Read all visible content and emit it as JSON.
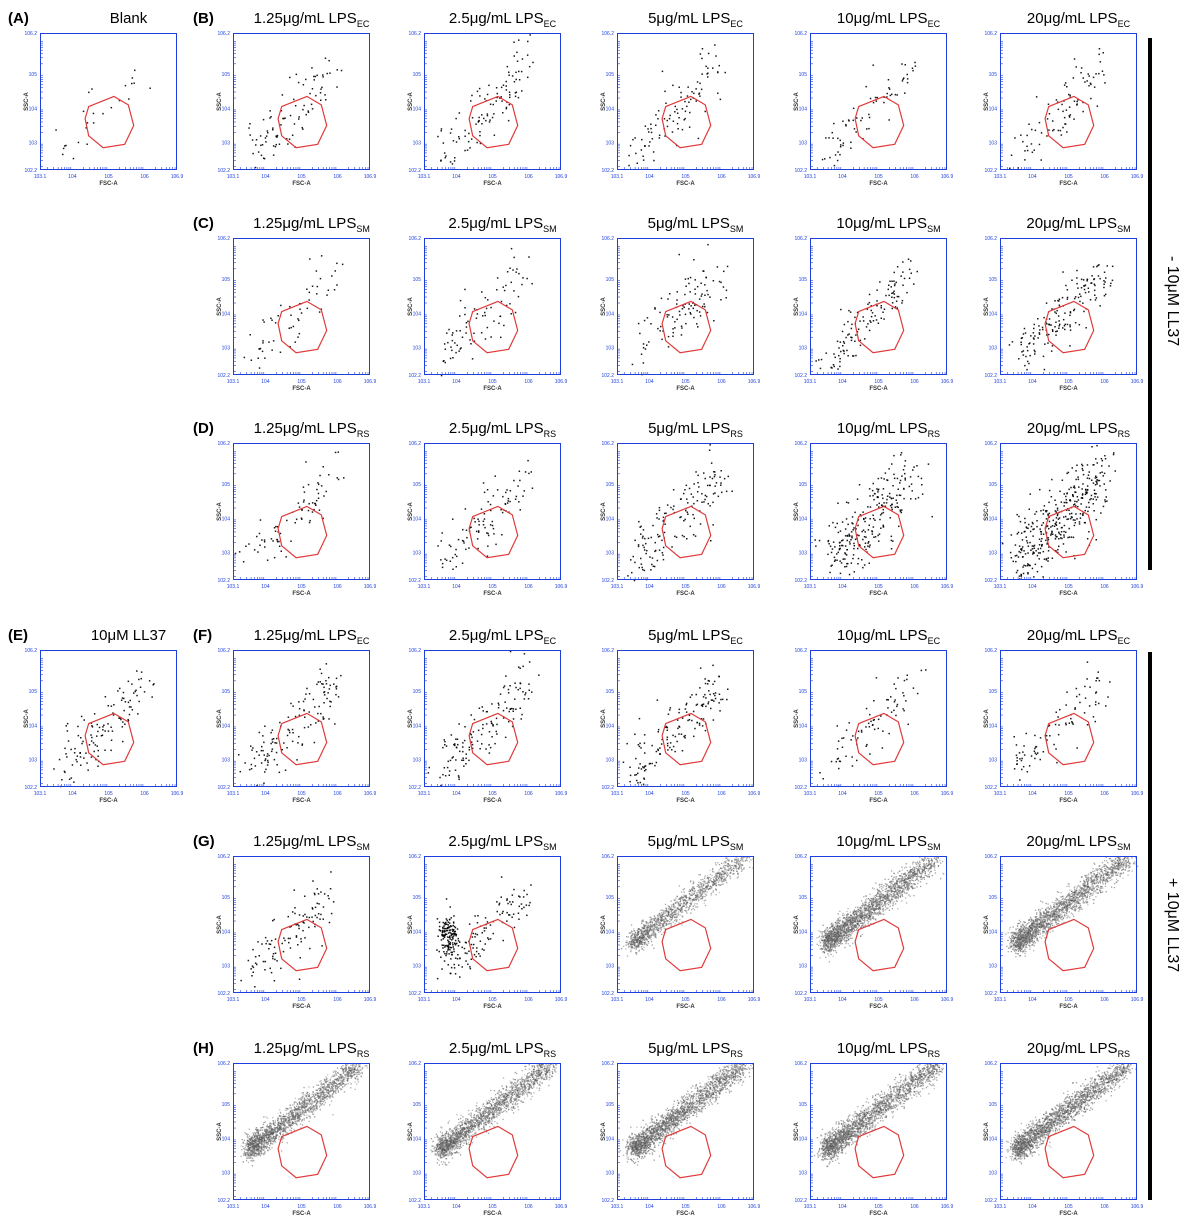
{
  "chart_data": {
    "type": "scatter",
    "description_of_axes": {
      "xlabel": "FSC-A",
      "ylabel": "SSC-A",
      "x_ticks": [
        "10^3.1",
        "10^4",
        "10^5",
        "10^6",
        "10^6.9"
      ],
      "y_ticks": [
        "10^2.2",
        "10^3",
        "10^4",
        "10^5",
        "10^6.2"
      ],
      "xlim_log10": [
        3.1,
        6.9
      ],
      "ylim_log10": [
        2.2,
        6.2
      ],
      "scale": "log"
    },
    "gate_polygon_log10": [
      [
        4.45,
        4.05
      ],
      [
        5.15,
        4.35
      ],
      [
        5.55,
        4.1
      ],
      [
        5.7,
        3.5
      ],
      [
        5.45,
        2.95
      ],
      [
        4.85,
        2.85
      ],
      [
        4.45,
        3.2
      ],
      [
        4.35,
        3.7
      ]
    ],
    "side_labels": [
      {
        "text": "- 10μM LL37",
        "rows": [
          "A",
          "B",
          "C",
          "D"
        ]
      },
      {
        "text": "+ 10μM LL37",
        "rows": [
          "E",
          "F",
          "G",
          "H"
        ]
      }
    ],
    "rows": [
      {
        "label": "(A)",
        "plots": [
          {
            "title": "Blank",
            "sub": "",
            "col": 0,
            "density": "sparse",
            "events": 25,
            "spread": 0.55
          }
        ]
      },
      {
        "label": "(B)",
        "plots": [
          {
            "title": "1.25μg/mL LPS",
            "sub": "EC",
            "col": 1,
            "density": "sparse",
            "events": 90,
            "spread": 0.7
          },
          {
            "title": "2.5μg/mL LPS",
            "sub": "EC",
            "col": 2,
            "density": "sparse",
            "events": 110,
            "spread": 0.7
          },
          {
            "title": "5μg/mL LPS",
            "sub": "EC",
            "col": 3,
            "density": "sparse",
            "events": 100,
            "spread": 0.7
          },
          {
            "title": "10μg/mL LPS",
            "sub": "EC",
            "col": 4,
            "density": "sparse",
            "events": 70,
            "spread": 0.6
          },
          {
            "title": "20μg/mL LPS",
            "sub": "EC",
            "col": 5,
            "density": "sparse",
            "events": 90,
            "spread": 0.7
          }
        ]
      },
      {
        "label": "(C)",
        "plots": [
          {
            "title": "1.25μg/mL LPS",
            "sub": "SM",
            "col": 1,
            "density": "sparse",
            "events": 60,
            "spread": 0.65
          },
          {
            "title": "2.5μg/mL LPS",
            "sub": "SM",
            "col": 2,
            "density": "sparse",
            "events": 90,
            "spread": 0.7
          },
          {
            "title": "5μg/mL LPS",
            "sub": "SM",
            "col": 3,
            "density": "sparse",
            "events": 110,
            "spread": 0.75
          },
          {
            "title": "10μg/mL LPS",
            "sub": "SM",
            "col": 4,
            "density": "sparse",
            "events": 130,
            "spread": 0.55
          },
          {
            "title": "20μg/mL LPS",
            "sub": "SM",
            "col": 5,
            "density": "sparse",
            "events": 170,
            "spread": 0.6
          }
        ]
      },
      {
        "label": "(D)",
        "plots": [
          {
            "title": "1.25μg/mL LPS",
            "sub": "RS",
            "col": 1,
            "density": "sparse",
            "events": 80,
            "spread": 0.7
          },
          {
            "title": "2.5μg/mL LPS",
            "sub": "RS",
            "col": 2,
            "density": "sparse",
            "events": 100,
            "spread": 0.7
          },
          {
            "title": "5μg/mL LPS",
            "sub": "RS",
            "col": 3,
            "density": "sparse",
            "events": 150,
            "spread": 0.8
          },
          {
            "title": "10μg/mL LPS",
            "sub": "RS",
            "col": 4,
            "density": "sparse",
            "events": 260,
            "spread": 0.85
          },
          {
            "title": "20μg/mL LPS",
            "sub": "RS",
            "col": 5,
            "density": "sparse",
            "events": 380,
            "spread": 0.85
          }
        ]
      },
      {
        "label": "(E)",
        "plots": [
          {
            "title": "10μM LL37",
            "sub": "",
            "col": 0,
            "density": "sparse",
            "events": 120,
            "spread": 0.7
          }
        ]
      },
      {
        "label": "(F)",
        "plots": [
          {
            "title": "1.25μg/mL LPS",
            "sub": "EC",
            "col": 1,
            "density": "sparse",
            "events": 130,
            "spread": 0.7
          },
          {
            "title": "2.5μg/mL LPS",
            "sub": "EC",
            "col": 2,
            "density": "sparse",
            "events": 140,
            "spread": 0.7
          },
          {
            "title": "5μg/mL LPS",
            "sub": "EC",
            "col": 3,
            "density": "sparse",
            "events": 150,
            "spread": 0.7
          },
          {
            "title": "10μg/mL LPS",
            "sub": "EC",
            "col": 4,
            "density": "sparse",
            "events": 80,
            "spread": 0.65
          },
          {
            "title": "20μg/mL LPS",
            "sub": "EC",
            "col": 5,
            "density": "sparse",
            "events": 90,
            "spread": 0.65
          }
        ]
      },
      {
        "label": "(G)",
        "plots": [
          {
            "title": "1.25μg/mL LPS",
            "sub": "SM",
            "col": 1,
            "density": "sparse",
            "events": 110,
            "spread": 0.7
          },
          {
            "title": "2.5μg/mL LPS",
            "sub": "SM",
            "col": 2,
            "density": "clustered",
            "events": 260,
            "spread": 0.5
          },
          {
            "title": "5μg/mL LPS",
            "sub": "SM",
            "col": 3,
            "density": "dense",
            "events": 1400,
            "spread": 0.45
          },
          {
            "title": "10μg/mL LPS",
            "sub": "SM",
            "col": 4,
            "density": "dense",
            "events": 2200,
            "spread": 0.5
          },
          {
            "title": "20μg/mL LPS",
            "sub": "SM",
            "col": 5,
            "density": "dense",
            "events": 2200,
            "spread": 0.5
          }
        ]
      },
      {
        "label": "(H)",
        "plots": [
          {
            "title": "1.25μg/mL LPS",
            "sub": "RS",
            "col": 1,
            "density": "dense",
            "events": 2000,
            "spread": 0.5
          },
          {
            "title": "2.5μg/mL LPS",
            "sub": "RS",
            "col": 2,
            "density": "dense",
            "events": 2000,
            "spread": 0.5
          },
          {
            "title": "5μg/mL LPS",
            "sub": "RS",
            "col": 3,
            "density": "dense",
            "events": 2200,
            "spread": 0.5
          },
          {
            "title": "10μg/mL LPS",
            "sub": "RS",
            "col": 4,
            "density": "dense",
            "events": 2200,
            "spread": 0.5
          },
          {
            "title": "20μg/mL LPS",
            "sub": "RS",
            "col": 5,
            "density": "dense",
            "events": 2200,
            "spread": 0.5
          }
        ]
      }
    ]
  },
  "colors": {
    "axis": "#1f3fdc",
    "gate": "#e03a3a",
    "event": "#000000",
    "bar": "#000000"
  }
}
